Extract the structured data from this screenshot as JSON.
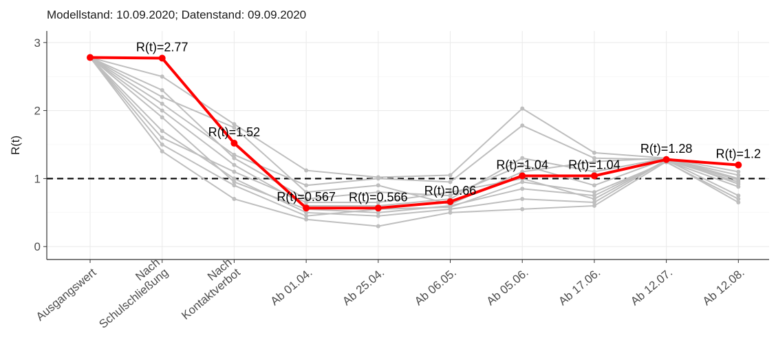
{
  "chart_data": {
    "type": "line",
    "title": "Modellstand: 10.09.2020; Datenstand: 09.09.2020",
    "y_label": "R(t)",
    "categories": [
      [
        "Ausgangswert"
      ],
      [
        "Nach",
        "Schulschließung"
      ],
      [
        "Nach",
        "Kontaktverbot"
      ],
      [
        "Ab 01.04."
      ],
      [
        "Ab 25.04."
      ],
      [
        "Ab 06.05."
      ],
      [
        "Ab 05.06."
      ],
      [
        "Ab 17.06."
      ],
      [
        "Ab 12.07."
      ],
      [
        "Ab 12.08."
      ]
    ],
    "series": [
      {
        "color": "#bebebe",
        "values": [
          2.78,
          2.5,
          1.8,
          1.12,
          1.02,
          1.05,
          2.03,
          1.38,
          1.3,
          1.0
        ]
      },
      {
        "color": "#bebebe",
        "values": [
          2.78,
          2.1,
          1.35,
          0.9,
          1.0,
          0.95,
          1.78,
          1.3,
          1.28,
          0.98
        ]
      },
      {
        "color": "#bebebe",
        "values": [
          2.78,
          1.4,
          0.7,
          0.4,
          0.3,
          0.5,
          0.55,
          0.6,
          1.25,
          0.65
        ]
      },
      {
        "color": "#bebebe",
        "values": [
          2.78,
          1.7,
          1.0,
          0.5,
          0.45,
          0.55,
          0.7,
          0.65,
          1.27,
          0.75
        ]
      },
      {
        "color": "#bebebe",
        "values": [
          2.78,
          2.0,
          1.2,
          0.6,
          0.6,
          0.7,
          1.3,
          1.1,
          1.3,
          1.1
        ]
      },
      {
        "color": "#bebebe",
        "values": [
          2.78,
          1.9,
          0.95,
          0.55,
          0.5,
          0.6,
          0.85,
          0.75,
          1.26,
          0.88
        ]
      },
      {
        "color": "#bebebe",
        "values": [
          2.78,
          2.2,
          1.75,
          0.8,
          0.9,
          0.62,
          1.1,
          1.25,
          1.3,
          0.92
        ]
      },
      {
        "color": "#bebebe",
        "values": [
          2.78,
          1.5,
          0.9,
          0.45,
          0.55,
          0.58,
          0.95,
          0.8,
          1.24,
          0.7
        ]
      },
      {
        "color": "#bebebe",
        "values": [
          2.78,
          2.3,
          1.3,
          0.7,
          0.8,
          0.75,
          1.2,
          0.9,
          1.29,
          1.05
        ]
      },
      {
        "color": "#bebebe",
        "values": [
          2.78,
          1.6,
          1.1,
          0.65,
          0.65,
          0.8,
          1.0,
          0.7,
          1.27,
          0.95
        ]
      },
      {
        "color": "#ff0000",
        "values": [
          2.78,
          2.77,
          1.52,
          0.567,
          0.566,
          0.66,
          1.04,
          1.04,
          1.28,
          1.2
        ],
        "value_labels": [
          null,
          "R(t)=2.77",
          "R(t)=1.52",
          "R(t)=0.567",
          "R(t)=0.566",
          "R(t)=0.66",
          "R(t)=1.04",
          "R(t)=1.04",
          "R(t)=1.28",
          "R(t)=1.2"
        ]
      }
    ],
    "hline": 1,
    "ylim": [
      -0.19,
      3.17
    ],
    "yticks": [
      0,
      1,
      2,
      3
    ],
    "grid": true
  }
}
